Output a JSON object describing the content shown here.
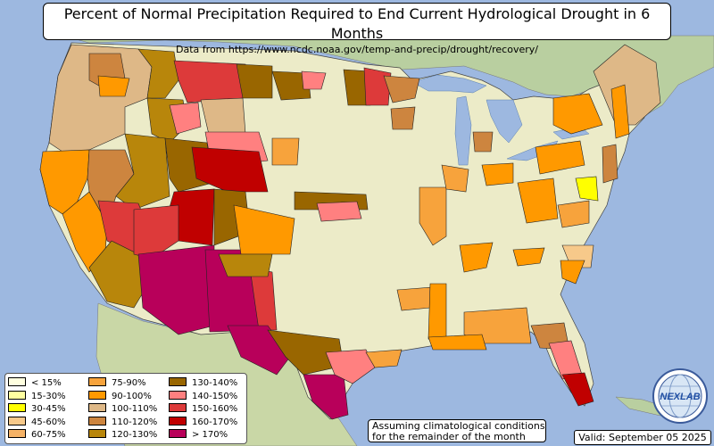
{
  "header": {
    "title": "Percent of Normal Precipitation Required to End Current Hydrological Drought in 6 Months",
    "subtitle": "Data from https://www.ncdc.noaa.gov/temp-and-precip/drought/recovery/"
  },
  "legend": {
    "items": [
      {
        "label": "< 15%",
        "color": "#ffffe0"
      },
      {
        "label": "15-30%",
        "color": "#ffffa0"
      },
      {
        "label": "30-45%",
        "color": "#ffff00"
      },
      {
        "label": "45-60%",
        "color": "#f7c98a"
      },
      {
        "label": "60-75%",
        "color": "#f5b266"
      },
      {
        "label": "75-90%",
        "color": "#f7a33c"
      },
      {
        "label": "90-100%",
        "color": "#ff9900"
      },
      {
        "label": "100-110%",
        "color": "#deb887"
      },
      {
        "label": "110-120%",
        "color": "#cd853f"
      },
      {
        "label": "120-130%",
        "color": "#b8860b"
      },
      {
        "label": "130-140%",
        "color": "#996600"
      },
      {
        "label": "140-150%",
        "color": "#ff8080"
      },
      {
        "label": "150-160%",
        "color": "#dd3a3a"
      },
      {
        "label": "160-170%",
        "color": "#c00000"
      },
      {
        "label": "> 170%",
        "color": "#b8005a"
      }
    ]
  },
  "note": {
    "line1": "Assuming climatological conditions",
    "line2": "for the remainder of the month"
  },
  "valid": "Valid: September 05 2025",
  "logo": {
    "text": "NEXLAB",
    "icon": "nexlab-globe-logo-icon"
  },
  "colors": {
    "ocean": "#9db8e0",
    "land": "#ecebc8",
    "foreign_land": "#b9cfa0"
  }
}
